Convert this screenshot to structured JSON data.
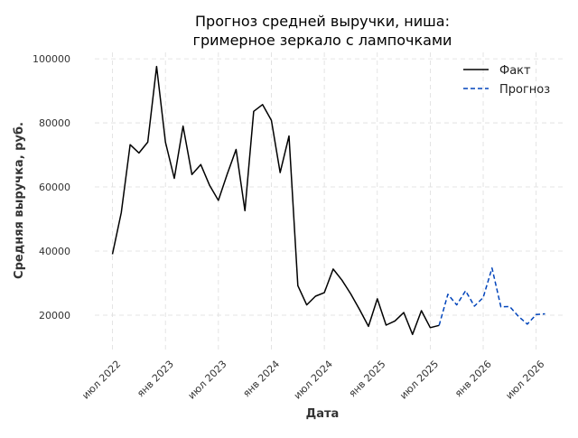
{
  "chart_data": {
    "type": "line",
    "title": [
      "Прогноз средней выручки, ниша:",
      "гримерное зеркало с лампочками"
    ],
    "xlabel": "Дата",
    "ylabel": "Средняя выручка, руб.",
    "x_range": [
      "2022-05",
      "2026-10"
    ],
    "ylim": [
      9000,
      102000
    ],
    "x_ticks": [
      {
        "date": "2022-07",
        "label": "июл 2022"
      },
      {
        "date": "2023-01",
        "label": "янв 2023"
      },
      {
        "date": "2023-07",
        "label": "июл 2023"
      },
      {
        "date": "2024-01",
        "label": "янв 2024"
      },
      {
        "date": "2024-07",
        "label": "июл 2024"
      },
      {
        "date": "2025-01",
        "label": "янв 2025"
      },
      {
        "date": "2025-07",
        "label": "июл 2025"
      },
      {
        "date": "2026-01",
        "label": "янв 2026"
      },
      {
        "date": "2026-07",
        "label": "июл 2026"
      }
    ],
    "y_ticks": [
      {
        "value": 20000,
        "label": "20000"
      },
      {
        "value": 40000,
        "label": "40000"
      },
      {
        "value": 60000,
        "label": "60000"
      },
      {
        "value": 80000,
        "label": "80000"
      },
      {
        "value": 100000,
        "label": "100000"
      }
    ],
    "grid": true,
    "legend_position": "top-right",
    "series": [
      {
        "name": "Факт",
        "color": "#000000",
        "style": "solid",
        "points": [
          {
            "x": "2022-07",
            "y": 39000
          },
          {
            "x": "2022-08",
            "y": 52000
          },
          {
            "x": "2022-09",
            "y": 73200
          },
          {
            "x": "2022-10",
            "y": 70600
          },
          {
            "x": "2022-11",
            "y": 74000
          },
          {
            "x": "2022-12",
            "y": 97600
          },
          {
            "x": "2023-01",
            "y": 74000
          },
          {
            "x": "2023-02",
            "y": 62700
          },
          {
            "x": "2023-03",
            "y": 79000
          },
          {
            "x": "2023-04",
            "y": 63900
          },
          {
            "x": "2023-05",
            "y": 67000
          },
          {
            "x": "2023-06",
            "y": 60500
          },
          {
            "x": "2023-07",
            "y": 55800
          },
          {
            "x": "2023-08",
            "y": 64000
          },
          {
            "x": "2023-09",
            "y": 71700
          },
          {
            "x": "2023-10",
            "y": 52600
          },
          {
            "x": "2023-11",
            "y": 83600
          },
          {
            "x": "2023-12",
            "y": 85700
          },
          {
            "x": "2024-01",
            "y": 80800
          },
          {
            "x": "2024-02",
            "y": 64500
          },
          {
            "x": "2024-03",
            "y": 75900
          },
          {
            "x": "2024-04",
            "y": 29200
          },
          {
            "x": "2024-05",
            "y": 23200
          },
          {
            "x": "2024-06",
            "y": 25900
          },
          {
            "x": "2024-07",
            "y": 27000
          },
          {
            "x": "2024-08",
            "y": 34400
          },
          {
            "x": "2024-09",
            "y": 30900
          },
          {
            "x": "2024-10",
            "y": 26600
          },
          {
            "x": "2024-11",
            "y": 21700
          },
          {
            "x": "2024-12",
            "y": 16500
          },
          {
            "x": "2025-01",
            "y": 25100
          },
          {
            "x": "2025-02",
            "y": 16900
          },
          {
            "x": "2025-03",
            "y": 18200
          },
          {
            "x": "2025-04",
            "y": 20800
          },
          {
            "x": "2025-05",
            "y": 14000
          },
          {
            "x": "2025-06",
            "y": 21400
          },
          {
            "x": "2025-07",
            "y": 16100
          },
          {
            "x": "2025-08",
            "y": 16800
          }
        ]
      },
      {
        "name": "Прогноз",
        "color": "#0044bb",
        "style": "dashed",
        "points": [
          {
            "x": "2025-08",
            "y": 16800
          },
          {
            "x": "2025-09",
            "y": 26500
          },
          {
            "x": "2025-10",
            "y": 23200
          },
          {
            "x": "2025-11",
            "y": 27600
          },
          {
            "x": "2025-12",
            "y": 22800
          },
          {
            "x": "2026-01",
            "y": 25500
          },
          {
            "x": "2026-02",
            "y": 34700
          },
          {
            "x": "2026-03",
            "y": 22600
          },
          {
            "x": "2026-04",
            "y": 22700
          },
          {
            "x": "2026-05",
            "y": 19600
          },
          {
            "x": "2026-06",
            "y": 17200
          },
          {
            "x": "2026-07",
            "y": 20200
          },
          {
            "x": "2026-08",
            "y": 20400
          }
        ]
      }
    ]
  }
}
